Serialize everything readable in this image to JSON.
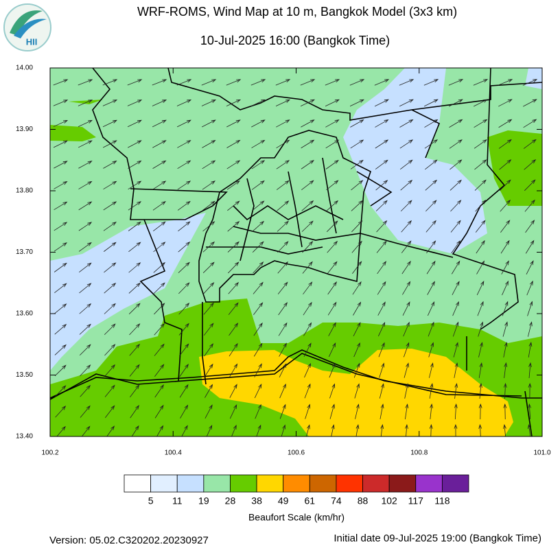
{
  "header": {
    "title": "WRF-ROMS, Wind Map at 10 m, Bangkok Model (3x3 km)",
    "subtitle": "10-Jul-2025 16:00 (Bangkok Time)",
    "logo": "HII"
  },
  "map": {
    "xlim": [
      100.2,
      101.0
    ],
    "ylim": [
      13.4,
      14.0
    ],
    "xticks": [
      {
        "value": 100.2,
        "label": "100.2"
      },
      {
        "value": 100.4,
        "label": "100.4"
      },
      {
        "value": 100.6,
        "label": "100.6"
      },
      {
        "value": 100.8,
        "label": "100.8"
      },
      {
        "value": 101.0,
        "label": "101.0"
      }
    ],
    "yticks": [
      {
        "value": 14.0,
        "label": "14.00"
      },
      {
        "value": 13.9,
        "label": "13.90"
      },
      {
        "value": 13.8,
        "label": "13.80"
      },
      {
        "value": 13.7,
        "label": "13.70"
      },
      {
        "value": 13.6,
        "label": "13.60"
      },
      {
        "value": 13.5,
        "label": "13.50"
      },
      {
        "value": 13.4,
        "label": "13.40"
      }
    ]
  },
  "legend": {
    "title": "Beaufort Scale (km/hr)",
    "colors": [
      "#ffffff",
      "#e1efff",
      "#c6e0ff",
      "#98e6a8",
      "#66cc00",
      "#ffd700",
      "#ff8c00",
      "#cd6600",
      "#ff3300",
      "#cc2a2a",
      "#8b1a1a",
      "#9933cc",
      "#6a1f9a"
    ],
    "labels": [
      5,
      11,
      19,
      28,
      38,
      49,
      61,
      74,
      88,
      102,
      117,
      118
    ]
  },
  "footer": {
    "version": "Version: 05.02.C320202.20230927",
    "initial": "Initial date 09-Jul-2025 19:00 (Bangkok Time)"
  }
}
